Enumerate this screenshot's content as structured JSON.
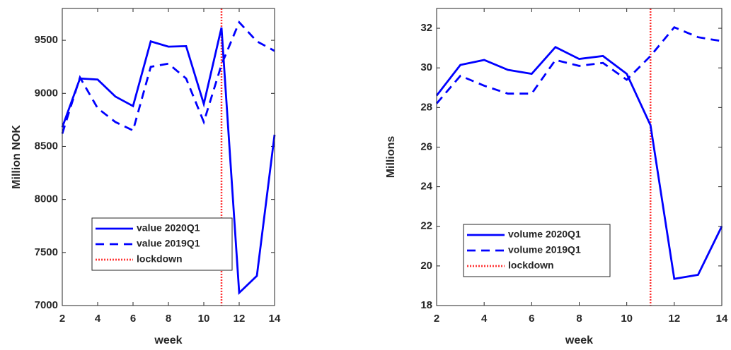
{
  "chart_data": [
    {
      "type": "line",
      "xlabel": "week",
      "ylabel": "Million NOK",
      "x": [
        2,
        3,
        4,
        5,
        6,
        7,
        8,
        9,
        10,
        11,
        12,
        13,
        14
      ],
      "series": [
        {
          "name": "value 2020Q1",
          "color": "#0000ff",
          "linestyle": "solid",
          "values": [
            8680,
            9140,
            9130,
            8970,
            8880,
            9490,
            9440,
            9445,
            8900,
            9620,
            7120,
            7280,
            8610
          ]
        },
        {
          "name": "value 2019Q1",
          "color": "#0000ff",
          "linestyle": "dashed",
          "values": [
            8620,
            9150,
            8860,
            8730,
            8650,
            9250,
            9280,
            9140,
            8730,
            9270,
            9670,
            9490,
            9400
          ]
        }
      ],
      "vline": {
        "name": "lockdown",
        "x": 11,
        "color": "#ff3333",
        "linestyle": "dotted"
      },
      "xlim": [
        2,
        14
      ],
      "xticks": [
        2,
        4,
        6,
        8,
        10,
        12,
        14
      ],
      "ylim": [
        7000,
        9800
      ],
      "yticks": [
        7000,
        7500,
        8000,
        8500,
        9000,
        9500
      ],
      "legend": "lower left"
    },
    {
      "type": "line",
      "xlabel": "week",
      "ylabel": "Millions",
      "x": [
        2,
        3,
        4,
        5,
        6,
        7,
        8,
        9,
        10,
        11,
        12,
        13,
        14
      ],
      "series": [
        {
          "name": "volume 2020Q1",
          "color": "#0000ff",
          "linestyle": "solid",
          "values": [
            28.6,
            30.15,
            30.4,
            29.9,
            29.7,
            31.05,
            30.45,
            30.6,
            29.7,
            27.1,
            19.35,
            19.55,
            22.0
          ]
        },
        {
          "name": "volume 2019Q1",
          "color": "#0000ff",
          "linestyle": "dashed",
          "values": [
            28.2,
            29.6,
            29.1,
            28.7,
            28.7,
            30.4,
            30.1,
            30.25,
            29.4,
            30.6,
            32.05,
            31.55,
            31.35
          ]
        }
      ],
      "vline": {
        "name": "lockdown",
        "x": 11,
        "color": "#ff3333",
        "linestyle": "dotted"
      },
      "xlim": [
        2,
        14
      ],
      "xticks": [
        2,
        4,
        6,
        8,
        10,
        12,
        14
      ],
      "ylim": [
        18,
        33
      ],
      "yticks": [
        18,
        20,
        22,
        24,
        26,
        28,
        30,
        32
      ],
      "legend": "lower left"
    }
  ]
}
